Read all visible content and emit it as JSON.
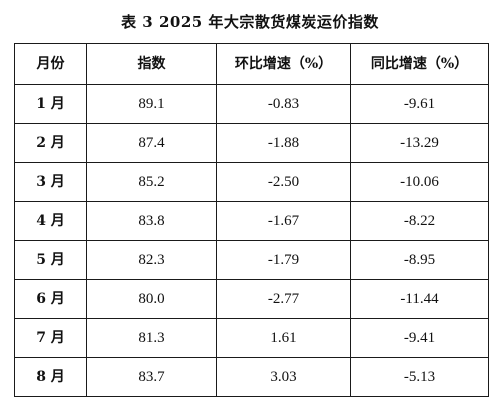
{
  "document": {
    "title": "表 3  2025 年大宗散货煤炭运价指数"
  },
  "table": {
    "headers": [
      "月份",
      "指数",
      "环比增速（%）",
      "同比增速（%）"
    ],
    "rows": [
      {
        "month": "1 月",
        "index": "89.1",
        "mom": "-0.83",
        "yoy": "-9.61"
      },
      {
        "month": "2 月",
        "index": "87.4",
        "mom": "-1.88",
        "yoy": "-13.29"
      },
      {
        "month": "3 月",
        "index": "85.2",
        "mom": "-2.50",
        "yoy": "-10.06"
      },
      {
        "month": "4 月",
        "index": "83.8",
        "mom": "-1.67",
        "yoy": "-8.22"
      },
      {
        "month": "5 月",
        "index": "82.3",
        "mom": "-1.79",
        "yoy": "-8.95"
      },
      {
        "month": "6 月",
        "index": "80.0",
        "mom": "-2.77",
        "yoy": "-11.44"
      },
      {
        "month": "7 月",
        "index": "81.3",
        "mom": "1.61",
        "yoy": "-9.41"
      },
      {
        "month": "8 月",
        "index": "83.7",
        "mom": "3.03",
        "yoy": "-5.13"
      }
    ]
  }
}
